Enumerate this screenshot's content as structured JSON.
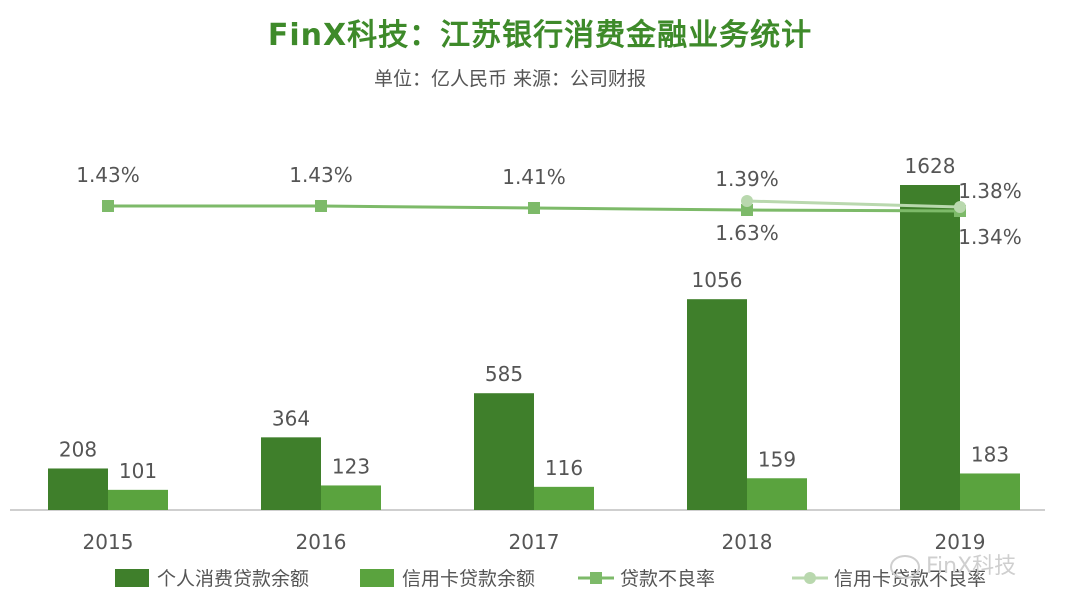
{
  "chart_data": {
    "type": "bar",
    "title": "FinX科技：江苏银行消费金融业务统计",
    "subtitle": "单位：亿人民币     来源：公司财报",
    "categories": [
      "2015",
      "2016",
      "2017",
      "2018",
      "2019"
    ],
    "series": [
      {
        "name": "个人消费贷款余额",
        "kind": "bar",
        "values": [
          208,
          364,
          585,
          1056,
          1628
        ],
        "color": "#3f7f2b"
      },
      {
        "name": "信用卡贷款余额",
        "kind": "bar",
        "values": [
          101,
          123,
          116,
          159,
          183
        ],
        "color": "#5aa33e"
      },
      {
        "name": "贷款不良率",
        "kind": "line",
        "values": [
          1.43,
          1.43,
          1.41,
          1.39,
          1.38
        ],
        "labels": [
          "1.43%",
          "1.43%",
          "1.41%",
          "1.39%",
          "1.38%"
        ],
        "color": "#7dba69",
        "marker": "square"
      },
      {
        "name": "信用卡贷款不良率",
        "kind": "line",
        "x": [
          "2018",
          "2019"
        ],
        "values": [
          1.63,
          1.34
        ],
        "labels": [
          "1.63%",
          "1.34%"
        ],
        "color": "#b9d8ae",
        "marker": "circle"
      }
    ],
    "legend_position": "bottom",
    "grid": false
  },
  "watermark": "FinX科技"
}
